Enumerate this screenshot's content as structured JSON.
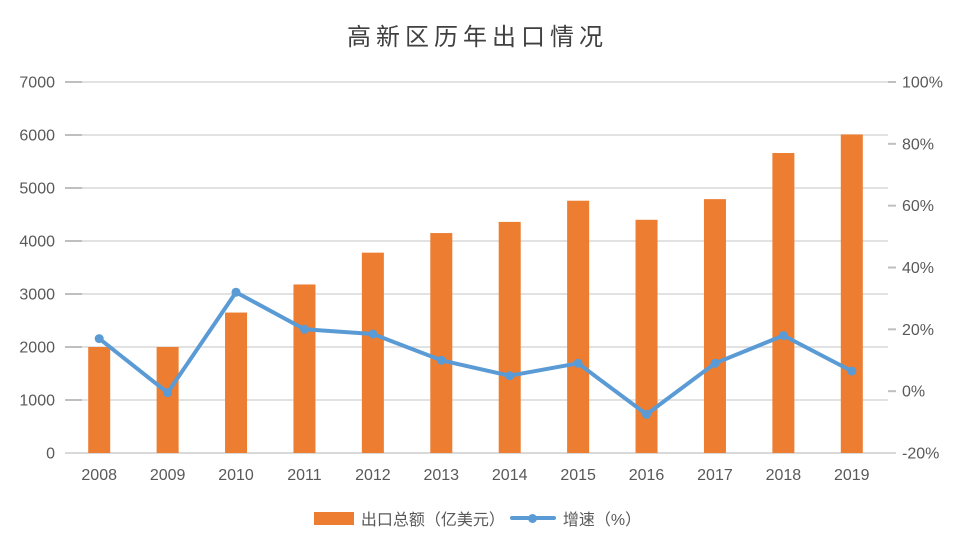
{
  "title": "高新区历年出口情况",
  "colors": {
    "bar": "#ED7D31",
    "line": "#5B9BD5",
    "gridline": "#D9D9D9",
    "tick": "#BFBFBF",
    "axis_text": "#595959",
    "title_text": "#404040",
    "background": "#FFFFFF"
  },
  "legend": {
    "bar_label": "出口总额（亿美元）",
    "line_label": "增速（%）"
  },
  "chart_data": {
    "type": "bar+line",
    "title": "高新区历年出口情况",
    "categories": [
      "2008",
      "2009",
      "2010",
      "2011",
      "2012",
      "2013",
      "2014",
      "2015",
      "2016",
      "2017",
      "2018",
      "2019"
    ],
    "series": [
      {
        "name": "出口总额（亿美元）",
        "type": "bar",
        "axis": "left",
        "color": "#ED7D31",
        "values": [
          2000,
          2000,
          2650,
          3180,
          3780,
          4150,
          4360,
          4760,
          4400,
          4790,
          5660,
          6010
        ]
      },
      {
        "name": "增速（%）",
        "type": "line",
        "axis": "right",
        "color": "#5B9BD5",
        "values": [
          17,
          -0.5,
          32,
          20,
          18.5,
          10,
          5,
          9,
          -7.5,
          9,
          18,
          6.5
        ]
      }
    ],
    "left_axis": {
      "min": 0,
      "max": 7000,
      "step": 1000,
      "ticks": [
        {
          "label": "0",
          "value": 0
        },
        {
          "label": "1000",
          "value": 1000
        },
        {
          "label": "2000",
          "value": 2000
        },
        {
          "label": "3000",
          "value": 3000
        },
        {
          "label": "4000",
          "value": 4000
        },
        {
          "label": "5000",
          "value": 5000
        },
        {
          "label": "6000",
          "value": 6000
        },
        {
          "label": "7000",
          "value": 7000
        }
      ]
    },
    "right_axis": {
      "min": -20,
      "max": 100,
      "step": 20,
      "ticks": [
        {
          "label": "-20%",
          "value": -20
        },
        {
          "label": "0%",
          "value": 0
        },
        {
          "label": "20%",
          "value": 20
        },
        {
          "label": "40%",
          "value": 40
        },
        {
          "label": "60%",
          "value": 60
        },
        {
          "label": "80%",
          "value": 80
        },
        {
          "label": "100%",
          "value": 100
        }
      ]
    },
    "grid": "horizontal",
    "legend_position": "bottom"
  }
}
